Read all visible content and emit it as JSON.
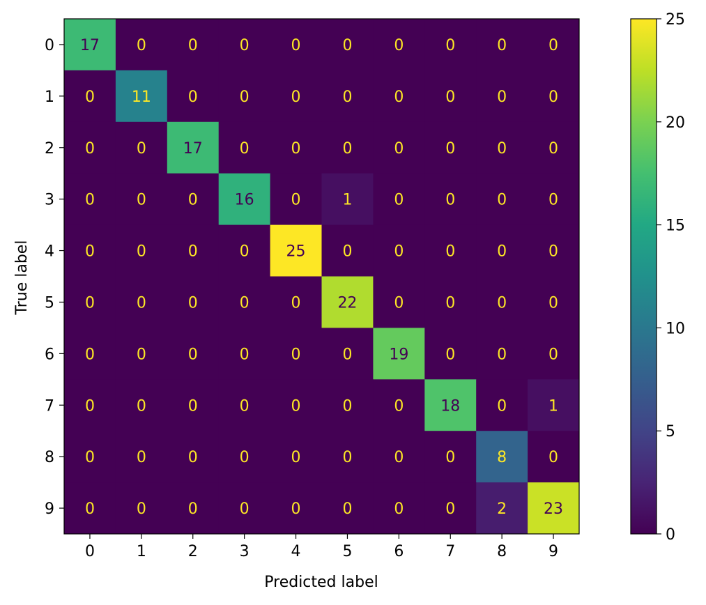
{
  "chart_data": {
    "type": "heatmap",
    "title": "",
    "xlabel": "Predicted label",
    "ylabel": "True label",
    "x_categories": [
      "0",
      "1",
      "2",
      "3",
      "4",
      "5",
      "6",
      "7",
      "8",
      "9"
    ],
    "y_categories": [
      "0",
      "1",
      "2",
      "3",
      "4",
      "5",
      "6",
      "7",
      "8",
      "9"
    ],
    "matrix": [
      [
        17,
        0,
        0,
        0,
        0,
        0,
        0,
        0,
        0,
        0
      ],
      [
        0,
        11,
        0,
        0,
        0,
        0,
        0,
        0,
        0,
        0
      ],
      [
        0,
        0,
        17,
        0,
        0,
        0,
        0,
        0,
        0,
        0
      ],
      [
        0,
        0,
        0,
        16,
        0,
        1,
        0,
        0,
        0,
        0
      ],
      [
        0,
        0,
        0,
        0,
        25,
        0,
        0,
        0,
        0,
        0
      ],
      [
        0,
        0,
        0,
        0,
        0,
        22,
        0,
        0,
        0,
        0
      ],
      [
        0,
        0,
        0,
        0,
        0,
        0,
        19,
        0,
        0,
        0
      ],
      [
        0,
        0,
        0,
        0,
        0,
        0,
        0,
        18,
        0,
        1
      ],
      [
        0,
        0,
        0,
        0,
        0,
        0,
        0,
        0,
        8,
        0
      ],
      [
        0,
        0,
        0,
        0,
        0,
        0,
        0,
        0,
        2,
        23
      ]
    ],
    "colormap": "viridis",
    "colorbar": {
      "min": 0,
      "max": 25,
      "ticks": [
        0,
        5,
        10,
        15,
        20,
        25
      ]
    },
    "cell_text_colors": {
      "on_dark": "#fde725",
      "on_light": "#440154"
    },
    "grid": false
  }
}
